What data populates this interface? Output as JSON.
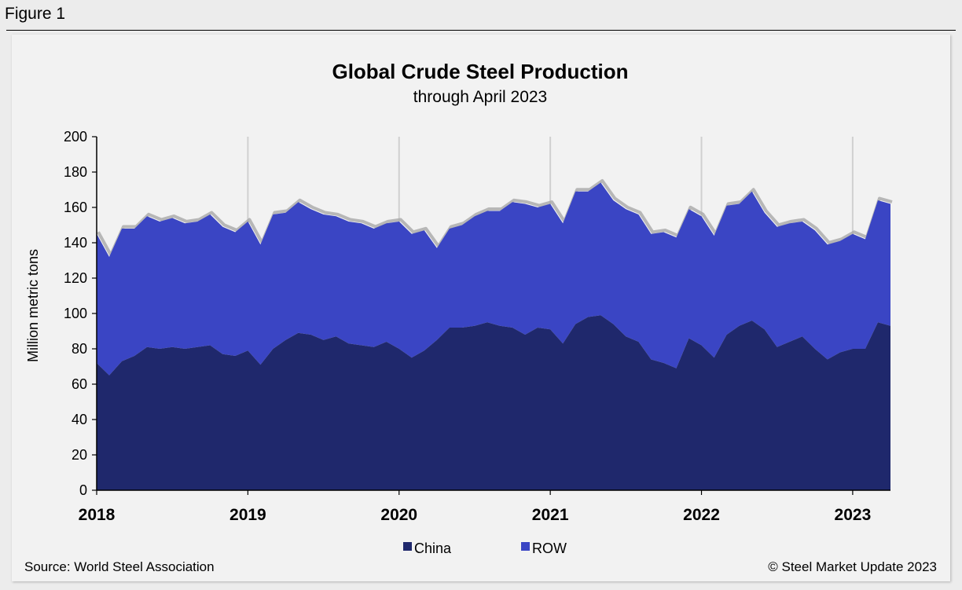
{
  "figure_label": "Figure 1",
  "source_text": "Source: World Steel Association",
  "copyright_text": "© Steel Market Update 2023",
  "colors": {
    "china": "#1f286c",
    "row": "#3a45c4",
    "grid": "#d0d0d0",
    "background": "#f2f2f2"
  },
  "chart_data": {
    "type": "area",
    "stacked": true,
    "title": "Global Crude Steel Production",
    "subtitle": "through April 2023",
    "ylabel": "Million metric tons",
    "xlabel": "",
    "ylim": [
      0,
      200
    ],
    "yticks": [
      0,
      20,
      40,
      60,
      80,
      100,
      120,
      140,
      160,
      180,
      200
    ],
    "xtick_labels": [
      "2018",
      "2019",
      "2020",
      "2021",
      "2022",
      "2023"
    ],
    "x_start": "2018-01",
    "x_end": "2023-04",
    "legend": [
      "China",
      "ROW"
    ],
    "legend_position": "bottom",
    "series": [
      {
        "name": "China",
        "values": [
          72,
          65,
          73,
          76,
          81,
          80,
          81,
          80,
          81,
          82,
          77,
          76,
          79,
          71,
          80,
          85,
          89,
          88,
          85,
          87,
          83,
          82,
          81,
          84,
          80,
          75,
          79,
          85,
          92,
          92,
          93,
          95,
          93,
          92,
          88,
          92,
          91,
          83,
          94,
          98,
          99,
          94,
          87,
          84,
          74,
          72,
          69,
          86,
          82,
          75,
          88,
          93,
          96,
          91,
          81,
          84,
          87,
          80,
          74,
          78,
          80,
          80,
          95,
          93
        ]
      },
      {
        "name": "ROW",
        "values": [
          73,
          67,
          75,
          72,
          74,
          72,
          73,
          71,
          71,
          74,
          72,
          70,
          73,
          68,
          76,
          72,
          74,
          71,
          71,
          68,
          69,
          69,
          67,
          67,
          72,
          70,
          68,
          52,
          56,
          58,
          62,
          63,
          65,
          71,
          74,
          68,
          71,
          68,
          75,
          71,
          75,
          70,
          72,
          72,
          71,
          74,
          74,
          73,
          73,
          69,
          73,
          69,
          73,
          66,
          68,
          67,
          65,
          67,
          65,
          63,
          65,
          62,
          69,
          69
        ]
      }
    ]
  }
}
